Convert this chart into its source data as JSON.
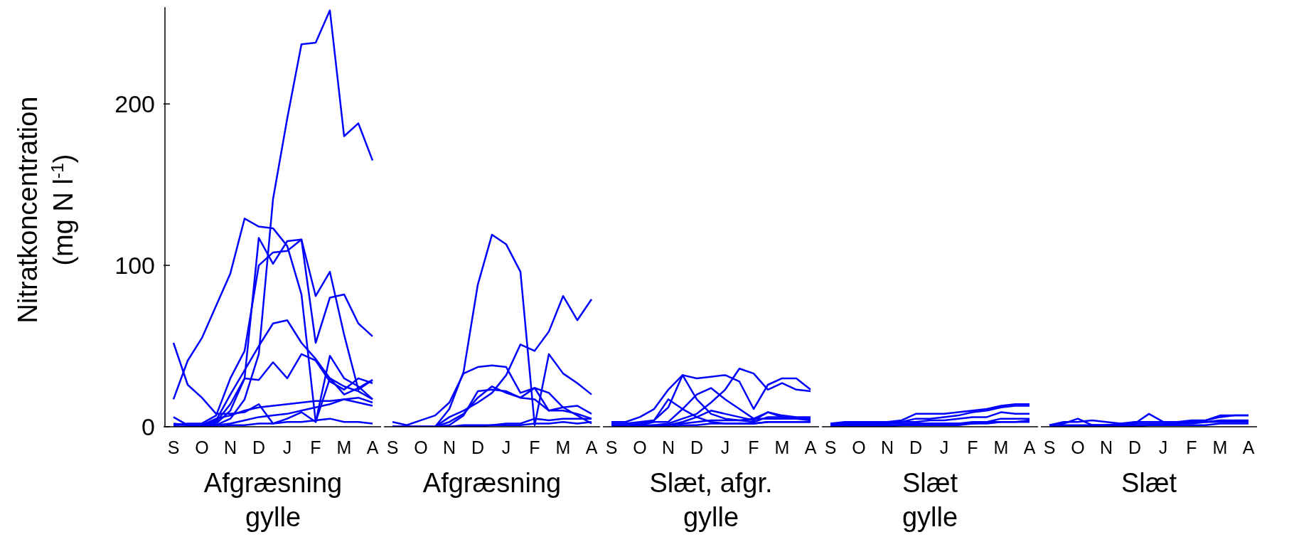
{
  "chart_data": [
    {
      "type": "line",
      "ylabel": "Nitratkoncentration\n(mg N l$^{-1}$)",
      "xlabel": "Afgræsning\ngylle",
      "ylim": [
        0,
        260
      ],
      "yticks": [
        0,
        100,
        200
      ],
      "categories": [
        "S",
        null,
        "O",
        null,
        "N",
        null,
        "D",
        null,
        "J",
        null,
        "F",
        null,
        "M",
        null,
        "A"
      ],
      "series": [
        {
          "color": "#0000ff",
          "values": [
            0,
            0,
            0,
            1,
            5,
            17,
            45,
            141,
            191,
            237,
            238,
            258,
            180,
            188,
            165
          ]
        },
        {
          "color": "#0000ff",
          "values": [
            17,
            41,
            55,
            75,
            95,
            129,
            124,
            123,
            112,
            82,
            3,
            30,
            20,
            24,
            29
          ]
        },
        {
          "color": "#0000ff",
          "values": [
            1,
            2,
            2,
            7,
            30,
            47,
            100,
            108,
            109,
            116,
            52,
            80,
            82,
            64,
            56
          ]
        },
        {
          "color": "#0000ff",
          "values": [
            0,
            0,
            0,
            2,
            10,
            30,
            117,
            101,
            115,
            116,
            81,
            96,
            57,
            23,
            29
          ]
        },
        {
          "color": "#0000ff",
          "values": [
            52,
            26,
            18,
            8,
            8,
            9,
            14,
            2,
            5,
            9,
            3,
            44,
            30,
            25,
            17
          ]
        },
        {
          "color": "#0000ff",
          "values": [
            0,
            0,
            0,
            4,
            20,
            35,
            50,
            64,
            66,
            52,
            42,
            30,
            25,
            22,
            17
          ]
        },
        {
          "color": "#0000ff",
          "values": [
            6,
            1,
            1,
            3,
            14,
            30,
            29,
            40,
            30,
            45,
            41,
            28,
            23,
            30,
            27
          ]
        },
        {
          "color": "#0000ff",
          "values": [
            2,
            1,
            1,
            5,
            7,
            10,
            12,
            13,
            14,
            15,
            16,
            16,
            17,
            15,
            13
          ]
        },
        {
          "color": "#0000ff",
          "values": [
            0,
            0,
            0,
            1,
            2,
            4,
            6,
            7,
            8,
            10,
            12,
            14,
            17,
            18,
            15
          ]
        },
        {
          "color": "#0000ff",
          "values": [
            0,
            0,
            0,
            0,
            1,
            1,
            2,
            2,
            3,
            3,
            4,
            5,
            3,
            3,
            2
          ]
        }
      ]
    },
    {
      "type": "line",
      "xlabel": "Afgræsning",
      "ylim": [
        0,
        260
      ],
      "tick_labels": "x",
      "categories": [
        "S",
        null,
        "O",
        null,
        "N",
        null,
        "D",
        null,
        "J",
        null,
        "F",
        null,
        "M",
        null,
        "A"
      ],
      "series": [
        {
          "color": "#0000ff",
          "values": [
            0,
            0,
            0,
            0,
            11,
            34,
            88,
            119,
            113,
            96,
            1,
            45,
            33,
            27,
            20
          ]
        },
        {
          "color": "#0000ff",
          "values": [
            0,
            0,
            0,
            0,
            6,
            10,
            15,
            21,
            32,
            51,
            47,
            59,
            81,
            66,
            79
          ]
        },
        {
          "color": "#0000ff",
          "values": [
            3,
            1,
            4,
            7,
            15,
            33,
            37,
            38,
            37,
            21,
            24,
            21,
            12,
            7,
            2
          ]
        },
        {
          "color": "#0000ff",
          "values": [
            0,
            0,
            0,
            0,
            1,
            7,
            22,
            23,
            22,
            18,
            24,
            10,
            12,
            13,
            8
          ]
        },
        {
          "color": "#0000ff",
          "values": [
            0,
            0,
            0,
            0,
            3,
            8,
            18,
            25,
            21,
            18,
            17,
            10,
            10,
            8,
            5
          ]
        },
        {
          "color": "#0000ff",
          "values": [
            0,
            0,
            0,
            0,
            0,
            1,
            1,
            1,
            2,
            2,
            5,
            4,
            5,
            5,
            5
          ]
        },
        {
          "color": "#0000ff",
          "values": [
            0,
            0,
            0,
            0,
            0,
            0,
            0,
            1,
            1,
            1,
            2,
            2,
            3,
            2,
            3
          ]
        }
      ]
    },
    {
      "type": "line",
      "xlabel": "Slæt, afgr.\ngylle",
      "ylim": [
        0,
        260
      ],
      "tick_labels": "x",
      "categories": [
        "S",
        null,
        "O",
        null,
        "N",
        null,
        "D",
        null,
        "J",
        null,
        "F",
        null,
        "M",
        null,
        "A"
      ],
      "series": [
        {
          "color": "#0000ff",
          "values": [
            3,
            3,
            6,
            11,
            23,
            32,
            30,
            31,
            32,
            28,
            11,
            26,
            30,
            30,
            23
          ]
        },
        {
          "color": "#0000ff",
          "values": [
            2,
            2,
            3,
            4,
            12,
            32,
            17,
            8,
            5,
            4,
            3,
            6,
            6,
            5,
            5
          ]
        },
        {
          "color": "#0000ff",
          "values": [
            1,
            1,
            2,
            4,
            17,
            11,
            6,
            3,
            2,
            2,
            2,
            3,
            3,
            3,
            3
          ]
        },
        {
          "color": "#0000ff",
          "values": [
            0,
            0,
            1,
            3,
            3,
            11,
            20,
            24,
            17,
            11,
            5,
            9,
            7,
            6,
            6
          ]
        },
        {
          "color": "#0000ff",
          "values": [
            0,
            0,
            0,
            1,
            2,
            5,
            8,
            15,
            23,
            36,
            33,
            23,
            27,
            23,
            22
          ]
        },
        {
          "color": "#0000ff",
          "values": [
            0,
            0,
            0,
            0,
            1,
            3,
            6,
            10,
            8,
            6,
            4,
            9,
            6,
            5,
            4
          ]
        },
        {
          "color": "#0000ff",
          "values": [
            1,
            1,
            1,
            1,
            1,
            2,
            3,
            4,
            4,
            4,
            5,
            5,
            5,
            5,
            5
          ]
        },
        {
          "color": "#0000ff",
          "values": [
            0,
            0,
            0,
            0,
            0,
            1,
            1,
            2,
            2,
            2,
            2,
            3,
            3,
            3,
            3
          ]
        }
      ]
    },
    {
      "type": "line",
      "xlabel": "Slæt\ngylle",
      "ylim": [
        0,
        260
      ],
      "tick_labels": "x",
      "categories": [
        "S",
        null,
        "O",
        null,
        "N",
        null,
        "D",
        null,
        "J",
        null,
        "F",
        null,
        "M",
        null,
        "A"
      ],
      "series": [
        {
          "color": "#0000ff",
          "values": [
            2,
            3,
            3,
            3,
            3,
            4,
            8,
            8,
            8,
            9,
            10,
            11,
            13,
            14,
            14
          ]
        },
        {
          "color": "#0000ff",
          "values": [
            1,
            2,
            2,
            2,
            3,
            3,
            5,
            5,
            6,
            7,
            9,
            10,
            12,
            13,
            13
          ]
        },
        {
          "color": "#0000ff",
          "values": [
            1,
            1,
            2,
            2,
            2,
            3,
            3,
            4,
            4,
            5,
            6,
            6,
            9,
            8,
            8
          ]
        },
        {
          "color": "#0000ff",
          "values": [
            0,
            1,
            1,
            1,
            1,
            1,
            2,
            2,
            2,
            2,
            3,
            3,
            5,
            5,
            5
          ]
        },
        {
          "color": "#0000ff",
          "values": [
            0,
            0,
            0,
            0,
            0,
            1,
            1,
            1,
            1,
            1,
            2,
            2,
            3,
            3,
            3
          ]
        },
        {
          "color": "#0000ff",
          "values": [
            2,
            2,
            2,
            2,
            2,
            2,
            2,
            2,
            2,
            2,
            2,
            3,
            3,
            3,
            4
          ]
        }
      ]
    },
    {
      "type": "line",
      "xlabel": "Slæt",
      "ylim": [
        0,
        260
      ],
      "tick_labels": "x",
      "categories": [
        "S",
        null,
        "O",
        null,
        "N",
        null,
        "D",
        null,
        "J",
        null,
        "F",
        null,
        "M",
        null,
        "A"
      ],
      "series": [
        {
          "color": "#0000ff",
          "values": [
            1,
            2,
            5,
            1,
            1,
            2,
            2,
            8,
            3,
            3,
            3,
            3,
            4,
            4,
            4
          ]
        },
        {
          "color": "#0000ff",
          "values": [
            1,
            3,
            3,
            4,
            3,
            2,
            3,
            3,
            3,
            3,
            4,
            4,
            7,
            7,
            7
          ]
        },
        {
          "color": "#0000ff",
          "values": [
            0,
            1,
            1,
            1,
            1,
            1,
            2,
            2,
            2,
            2,
            3,
            4,
            6,
            7,
            7
          ]
        },
        {
          "color": "#0000ff",
          "values": [
            0,
            0,
            0,
            1,
            1,
            1,
            1,
            1,
            1,
            2,
            2,
            3,
            3,
            3,
            3
          ]
        },
        {
          "color": "#0000ff",
          "values": [
            0,
            0,
            0,
            0,
            0,
            0,
            0,
            1,
            1,
            1,
            1,
            1,
            2,
            2,
            2
          ]
        }
      ]
    }
  ]
}
